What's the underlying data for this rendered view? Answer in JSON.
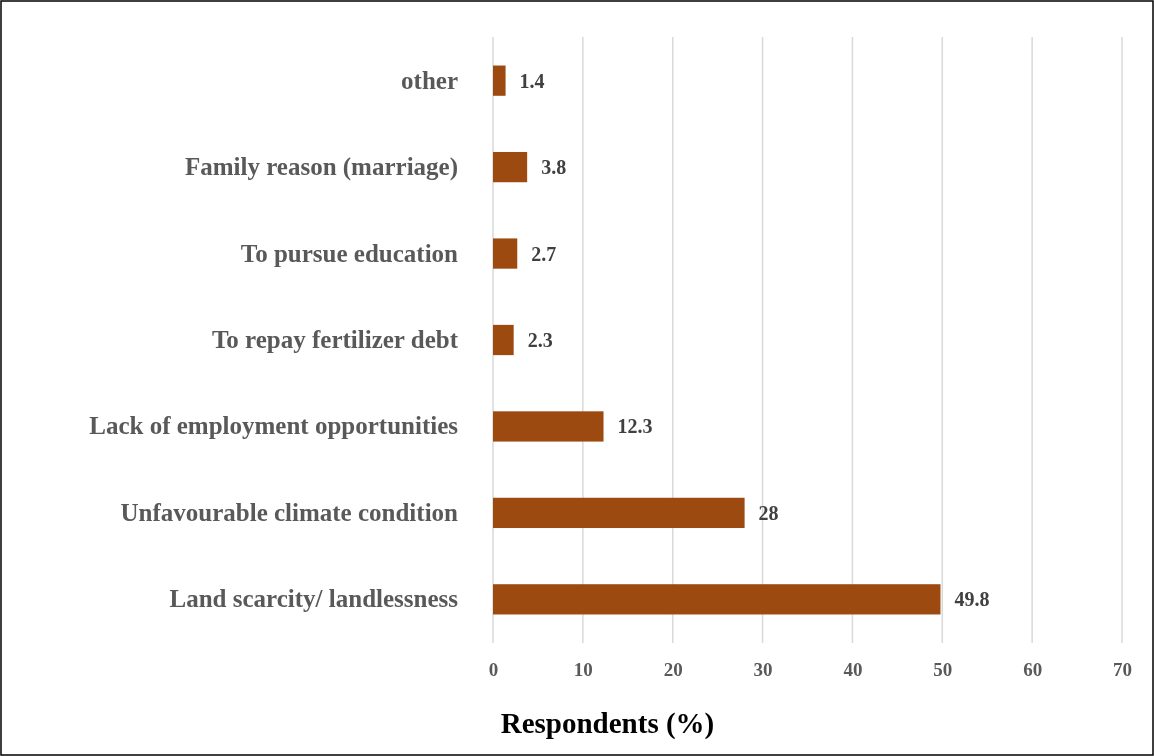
{
  "chart_data": {
    "type": "bar",
    "orientation": "horizontal",
    "xlabel": "Respondents (%)",
    "categories": [
      "other",
      "Family reason (marriage)",
      "To pursue education",
      "To repay fertilizer debt",
      "Lack of employment opportunities",
      "Unfavourable climate condition",
      "Land scarcity/ landlessness"
    ],
    "values": [
      1.4,
      3.8,
      2.7,
      2.3,
      12.3,
      28,
      49.8
    ],
    "color": "#9c4a0f",
    "xlim": [
      0,
      70
    ],
    "xticks": [
      0,
      10,
      20,
      30,
      40,
      50,
      60,
      70
    ],
    "grid": "x",
    "data_labels": true
  }
}
